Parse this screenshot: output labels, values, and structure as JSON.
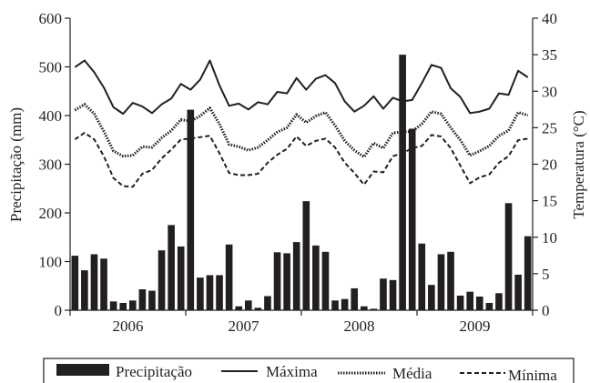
{
  "chart_data": {
    "type": "bar",
    "xlabel": "",
    "x_ticks": [
      "2006",
      "2007",
      "2008",
      "2009"
    ],
    "y_left": {
      "label": "Precipitação (mm)",
      "ylim": [
        0,
        600
      ],
      "ticks": [
        0,
        100,
        200,
        300,
        400,
        500,
        600
      ]
    },
    "y_right": {
      "label": "Temperatura (°C)",
      "ylim": [
        0,
        40
      ],
      "ticks": [
        0,
        5,
        10,
        15,
        20,
        25,
        30,
        35,
        40
      ]
    },
    "months": [
      "2006-01",
      "2006-02",
      "2006-03",
      "2006-04",
      "2006-05",
      "2006-06",
      "2006-07",
      "2006-08",
      "2006-09",
      "2006-10",
      "2006-11",
      "2006-12",
      "2007-01",
      "2007-02",
      "2007-03",
      "2007-04",
      "2007-05",
      "2007-06",
      "2007-07",
      "2007-08",
      "2007-09",
      "2007-10",
      "2007-11",
      "2007-12",
      "2008-01",
      "2008-02",
      "2008-03",
      "2008-04",
      "2008-05",
      "2008-06",
      "2008-07",
      "2008-08",
      "2008-09",
      "2008-10",
      "2008-11",
      "2008-12",
      "2009-01",
      "2009-02",
      "2009-03",
      "2009-04",
      "2009-05",
      "2009-06",
      "2009-07",
      "2009-08",
      "2009-09",
      "2009-10",
      "2009-11",
      "2009-12"
    ],
    "series": [
      {
        "name": "Precipitação",
        "type": "bar",
        "axis": "left",
        "color": "#231f20",
        "values": [
          112,
          82,
          115,
          106,
          18,
          15,
          20,
          43,
          40,
          123,
          175,
          131,
          412,
          67,
          72,
          72,
          135,
          8,
          20,
          5,
          29,
          119,
          117,
          140,
          224,
          133,
          120,
          20,
          23,
          45,
          8,
          3,
          65,
          62,
          525,
          373,
          137,
          52,
          115,
          120,
          30,
          38,
          28,
          15,
          35,
          220,
          73,
          152
        ]
      },
      {
        "name": "Máxima",
        "type": "line",
        "style": "solid",
        "axis": "right",
        "color": "#231f20",
        "values": [
          33.3,
          34.2,
          32.6,
          30.5,
          27.8,
          26.9,
          28.4,
          27.9,
          27.0,
          28.2,
          29.0,
          31.0,
          30.2,
          31.6,
          34.2,
          30.8,
          28.0,
          28.3,
          27.5,
          28.5,
          28.2,
          29.9,
          29.7,
          31.8,
          30.2,
          31.7,
          32.2,
          31.1,
          28.6,
          27.2,
          28.0,
          29.3,
          27.6,
          29.1,
          28.6,
          28.8,
          31.1,
          33.6,
          33.2,
          30.4,
          29.2,
          27.0,
          27.2,
          27.6,
          29.7,
          29.5,
          32.8,
          31.9
        ]
      },
      {
        "name": "Média",
        "type": "line",
        "style": "dotted",
        "axis": "right",
        "color": "#231f20",
        "values": [
          27.4,
          28.2,
          26.9,
          24.5,
          21.8,
          21.1,
          21.2,
          22.4,
          22.3,
          23.6,
          24.6,
          26.1,
          25.9,
          26.6,
          27.7,
          25.5,
          22.7,
          22.4,
          21.9,
          22.3,
          23.3,
          24.4,
          25.0,
          26.8,
          25.7,
          26.6,
          27.1,
          25.3,
          23.2,
          21.9,
          21.0,
          22.9,
          22.2,
          24.3,
          24.4,
          24.5,
          25.5,
          27.2,
          26.9,
          25.0,
          23.3,
          21.2,
          21.8,
          22.5,
          23.9,
          24.6,
          27.1,
          26.7
        ]
      },
      {
        "name": "Mínima",
        "type": "line",
        "style": "dashed",
        "axis": "right",
        "color": "#231f20",
        "values": [
          23.4,
          24.3,
          23.4,
          21.1,
          18.1,
          17.0,
          16.9,
          18.7,
          19.2,
          20.8,
          22.0,
          23.4,
          23.5,
          23.7,
          23.9,
          21.5,
          18.8,
          18.5,
          18.5,
          18.7,
          20.2,
          21.3,
          22.1,
          23.8,
          22.5,
          23.2,
          23.5,
          22.3,
          20.2,
          18.8,
          17.2,
          19.0,
          18.9,
          21.1,
          21.5,
          22.2,
          22.5,
          24.0,
          23.8,
          22.2,
          19.8,
          17.4,
          18.2,
          18.6,
          20.2,
          21.1,
          23.3,
          23.5
        ]
      }
    ],
    "legend_placement": "bottom",
    "grid": false
  }
}
